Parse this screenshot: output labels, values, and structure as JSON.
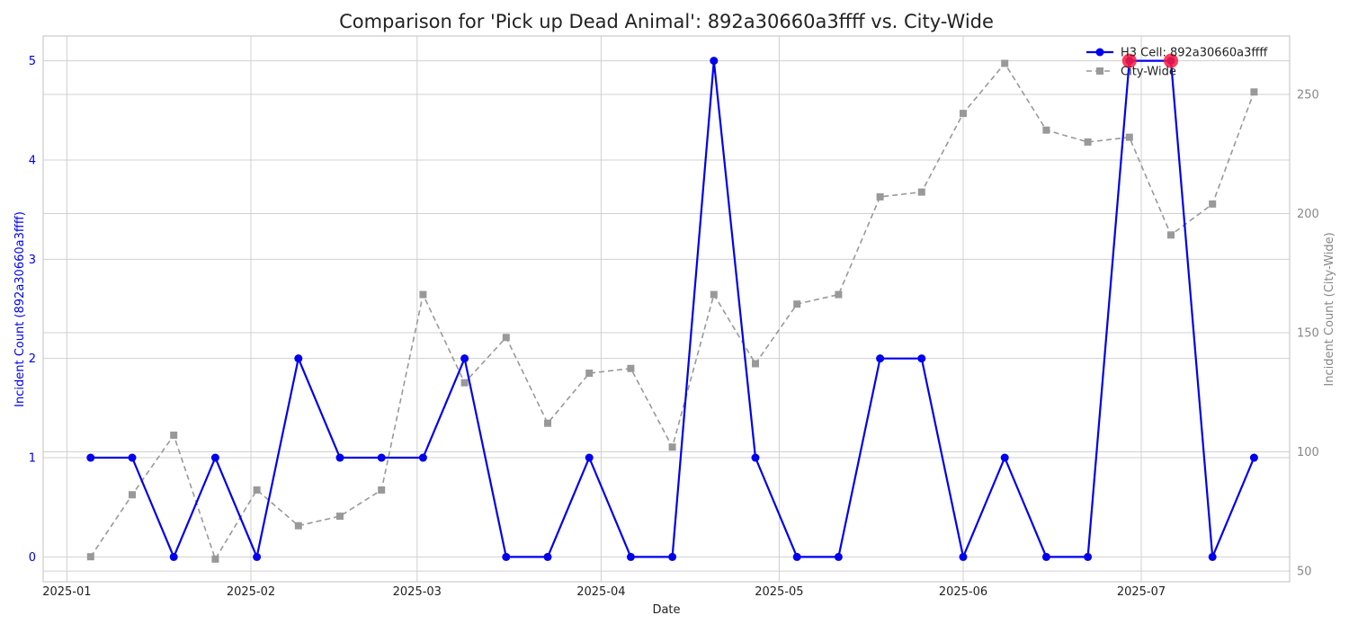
{
  "chart_data": {
    "type": "line",
    "title": "Comparison for 'Pick up Dead Animal': 892a30660a3ffff vs. City-Wide",
    "xlabel": "Date",
    "ylabel_left": "Incident Count (892a30660a3ffff)",
    "ylabel_right": "Incident Count (City-Wide)",
    "x_ticks": [
      "2025-01",
      "2025-02",
      "2025-03",
      "2025-04",
      "2025-05",
      "2025-06",
      "2025-07"
    ],
    "x_tick_dates": [
      "2025-01-01",
      "2025-02-01",
      "2025-03-01",
      "2025-04-01",
      "2025-05-01",
      "2025-06-01",
      "2025-07-01"
    ],
    "xlim": [
      "2024-12-28",
      "2025-07-26"
    ],
    "y_left_ticks": [
      0,
      1,
      2,
      3,
      4,
      5
    ],
    "y_left_lim": [
      -0.25,
      5.25
    ],
    "y_right_ticks": [
      50,
      100,
      150,
      200,
      250
    ],
    "y_right_lim": [
      45.5,
      274.5
    ],
    "grid": true,
    "legend_position": "top-right",
    "dates": [
      "2025-01-05",
      "2025-01-12",
      "2025-01-19",
      "2025-01-26",
      "2025-02-02",
      "2025-02-09",
      "2025-02-16",
      "2025-02-23",
      "2025-03-02",
      "2025-03-09",
      "2025-03-16",
      "2025-03-23",
      "2025-03-30",
      "2025-04-06",
      "2025-04-13",
      "2025-04-20",
      "2025-04-27",
      "2025-05-04",
      "2025-05-11",
      "2025-05-18",
      "2025-05-25",
      "2025-06-01",
      "2025-06-08",
      "2025-06-15",
      "2025-06-22",
      "2025-06-29",
      "2025-07-06",
      "2025-07-13",
      "2025-07-20"
    ],
    "series": [
      {
        "name": "H3 Cell: 892a30660a3ffff",
        "axis": "left",
        "color": "#0000ee",
        "style": "solid",
        "marker": "circle",
        "values": [
          1,
          1,
          0,
          1,
          0,
          2,
          1,
          1,
          1,
          2,
          0,
          0,
          1,
          0,
          0,
          5,
          1,
          0,
          0,
          2,
          2,
          0,
          1,
          0,
          0,
          5,
          5,
          0,
          1
        ]
      },
      {
        "name": "City-Wide",
        "axis": "right",
        "color": "#999999",
        "style": "dashed",
        "marker": "square",
        "values": [
          56,
          82,
          107,
          55,
          84,
          69,
          73,
          84,
          166,
          129,
          148,
          112,
          133,
          135,
          102,
          166,
          137,
          162,
          166,
          207,
          209,
          242,
          263,
          235,
          230,
          232,
          191,
          204,
          251
        ]
      }
    ],
    "highlights": {
      "color": "#ff1a3c",
      "points": [
        {
          "date": "2025-06-29",
          "value": 5
        },
        {
          "date": "2025-07-06",
          "value": 5
        }
      ]
    }
  }
}
